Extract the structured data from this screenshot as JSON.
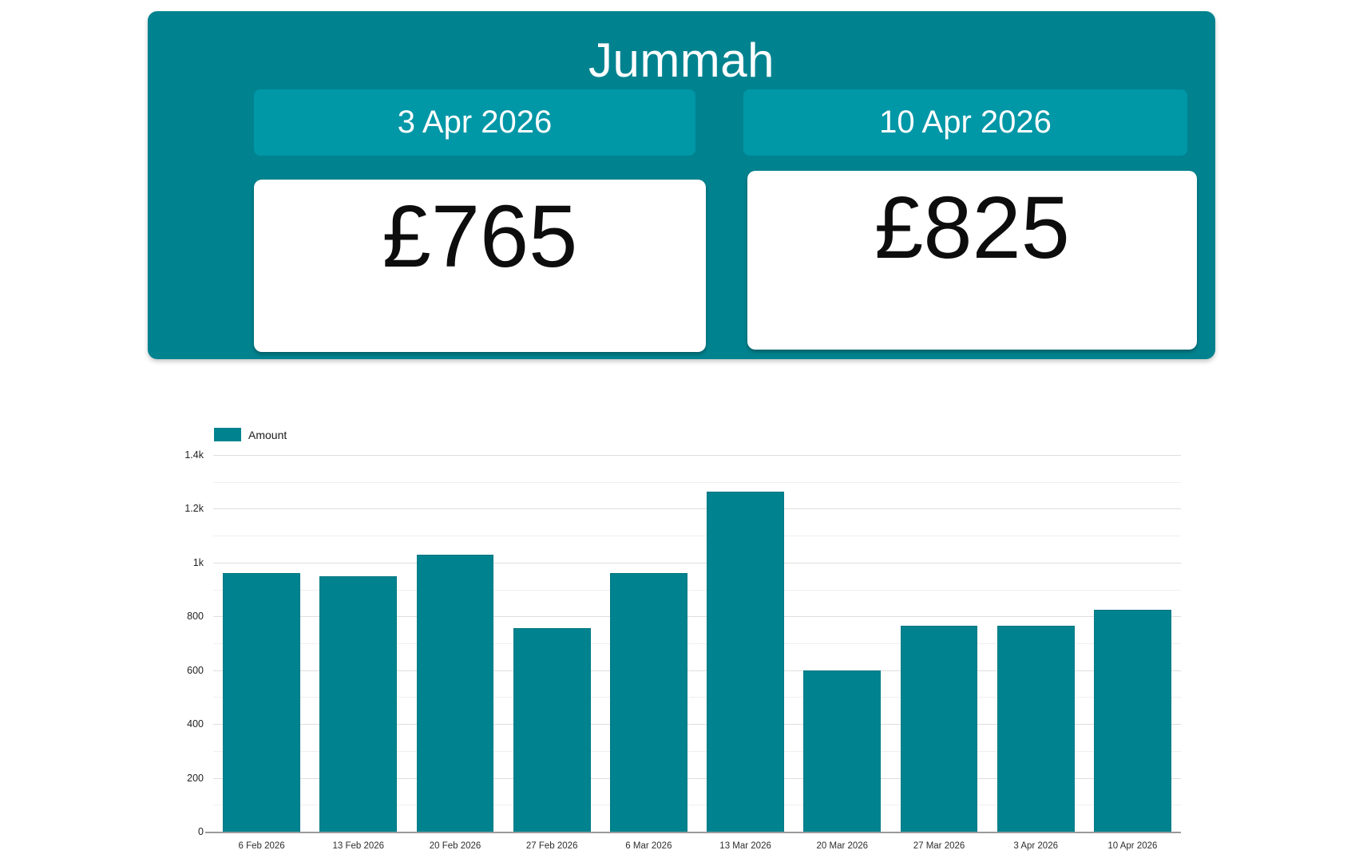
{
  "header": {
    "title": "Jummah",
    "columns": [
      {
        "date": "3 Apr 2026",
        "amount": "£765"
      },
      {
        "date": "10 Apr 2026",
        "amount": "£825"
      }
    ]
  },
  "colors": {
    "card_teal": "#00838f",
    "badge_teal": "#0097a7",
    "bar_teal": "#00838f",
    "amount_text": "#0d0d0d",
    "grid_major": "#dedede",
    "grid_minor": "#efefef",
    "axis_baseline": "#9a9a9a"
  },
  "chart_data": {
    "type": "bar",
    "title": "",
    "xlabel": "",
    "ylabel": "",
    "legend": [
      "Amount"
    ],
    "legend_position": "top-left",
    "grid": true,
    "categories": [
      "6 Feb 2026",
      "13 Feb 2026",
      "20 Feb 2026",
      "27 Feb 2026",
      "6 Mar 2026",
      "13 Mar 2026",
      "20 Mar 2026",
      "27 Mar 2026",
      "3 Apr 2026",
      "10 Apr 2026"
    ],
    "series": [
      {
        "name": "Amount",
        "values": [
          960,
          950,
          1030,
          755,
          960,
          1265,
          600,
          765,
          765,
          825
        ]
      }
    ],
    "ylim": [
      0,
      1400
    ],
    "ytick_interval": 200,
    "ytick_minor_interval": 100,
    "ytick_labels": [
      "0",
      "200",
      "400",
      "600",
      "800",
      "1k",
      "1.2k",
      "1.4k"
    ]
  }
}
